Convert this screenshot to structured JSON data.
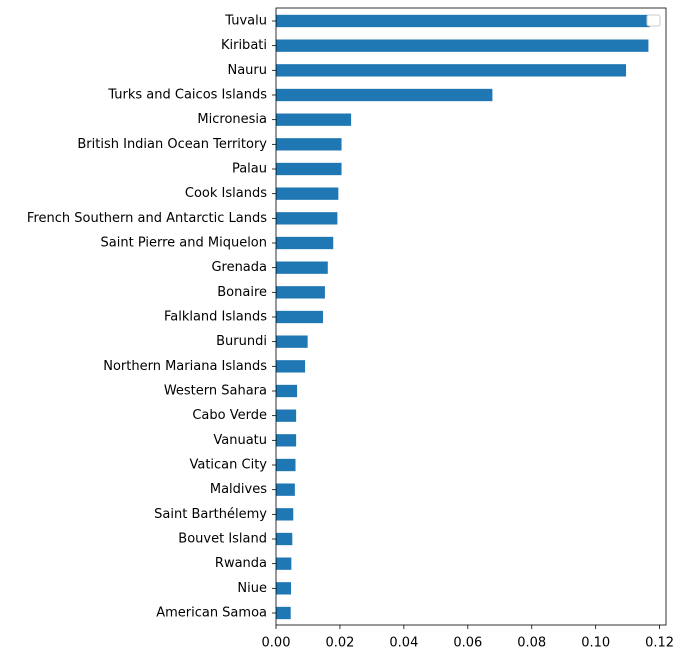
{
  "chart_data": {
    "type": "bar",
    "orientation": "horizontal",
    "categories": [
      "Tuvalu",
      "Kiribati",
      "Nauru",
      "Turks and Caicos Islands",
      "Micronesia",
      "British Indian Ocean Territory",
      "Palau",
      "Cook Islands",
      "French Southern and Antarctic Lands",
      "Saint Pierre and Miquelon",
      "Grenada",
      "Bonaire",
      "Falkland Islands",
      "Burundi",
      "Northern Mariana Islands",
      "Western Sahara",
      "Cabo Verde",
      "Vanuatu",
      "Vatican City",
      "Maldives",
      "Saint Barthélemy",
      "Bouvet Island",
      "Rwanda",
      "Niue",
      "American Samoa"
    ],
    "values": [
      0.117,
      0.1165,
      0.1095,
      0.0677,
      0.0235,
      0.0205,
      0.0205,
      0.0195,
      0.0192,
      0.0179,
      0.0162,
      0.0153,
      0.0147,
      0.0099,
      0.0091,
      0.0066,
      0.0063,
      0.0063,
      0.0061,
      0.0059,
      0.0054,
      0.0051,
      0.0048,
      0.0047,
      0.0046
    ],
    "xlim": [
      0,
      0.122
    ],
    "x_ticks": [
      "0.00",
      "0.02",
      "0.04",
      "0.06",
      "0.08",
      "0.10",
      "0.12"
    ],
    "x_tick_values": [
      0,
      0.02,
      0.04,
      0.06,
      0.08,
      0.1,
      0.12
    ],
    "title": "",
    "xlabel": "",
    "ylabel": "",
    "grid": false,
    "legend": {
      "placement": "top-right",
      "entries": []
    },
    "colors": {
      "bar": "#1f77b4",
      "axis": "#000000",
      "legend_border": "#cccccc"
    }
  }
}
